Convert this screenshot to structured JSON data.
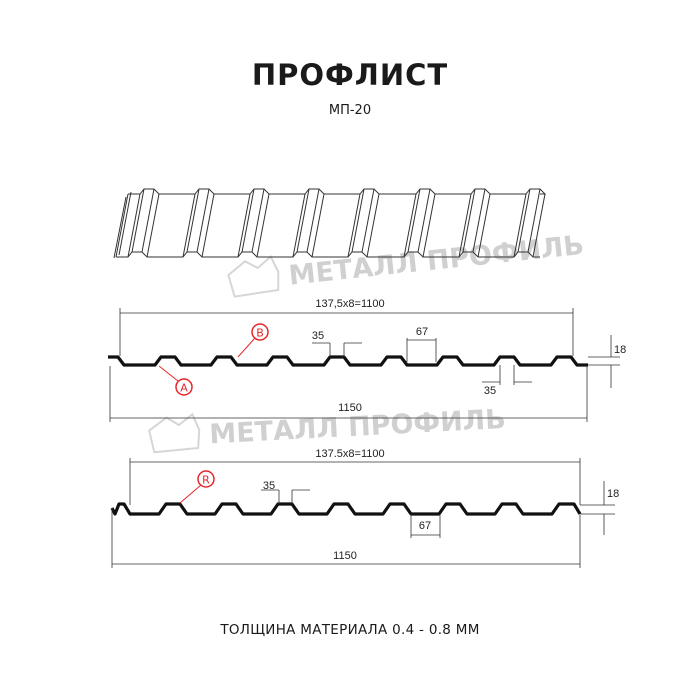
{
  "header": {
    "title": "ПРОФЛИСТ",
    "subtitle": "МП-20"
  },
  "watermark": {
    "text": "МЕТАЛЛ ПРОФИЛЬ"
  },
  "profile_top": {
    "total_dim": "137,5x8=1100",
    "width_dim": "1150",
    "rib_top_dim": "35",
    "rib_bottom_dim": "35",
    "pitch_dim": "67",
    "height_dim": "18",
    "markers": [
      "B",
      "A"
    ]
  },
  "profile_bottom": {
    "total_dim": "137.5x8=1100",
    "width_dim": "1150",
    "rib_top_dim": "35",
    "pitch_dim": "67",
    "height_dim": "18",
    "markers": [
      "R"
    ]
  },
  "footer": {
    "thickness": "ТОЛЩИНА МАТЕРИАЛА 0.4 - 0.8 ММ"
  },
  "colors": {
    "line": "#111111",
    "marker": "#e8262a",
    "watermark": "#d0d0d0"
  }
}
